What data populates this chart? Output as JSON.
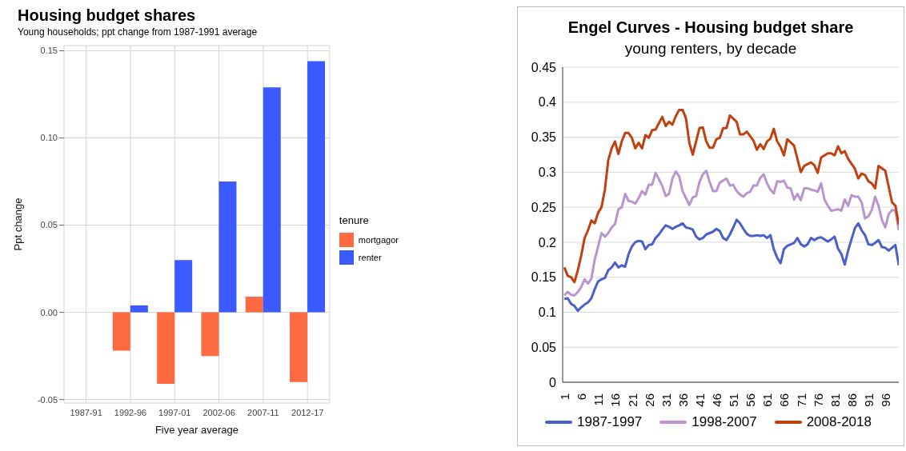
{
  "chart_data": [
    {
      "type": "bar",
      "title": "Housing budget shares",
      "subtitle": "Young households; ppt change from 1987-1991 average",
      "xlabel": "Five year average",
      "ylabel": "Ppt change",
      "legend_title": "tenure",
      "categories": [
        "1987-91",
        "1992-96",
        "1997-01",
        "2002-06",
        "2007-11",
        "2012-17"
      ],
      "series": [
        {
          "name": "mortgagor",
          "color": "#fd6a42",
          "values": [
            0,
            -0.022,
            -0.041,
            -0.025,
            0.009,
            -0.04
          ]
        },
        {
          "name": "renter",
          "color": "#3a5aff",
          "values": [
            0,
            0.004,
            0.03,
            0.075,
            0.129,
            0.144
          ]
        }
      ],
      "ylim": [
        -0.052,
        0.153
      ],
      "yticks": [
        -0.05,
        {
          "value": 0,
          "label": "0.00"
        },
        0.05,
        {
          "value": 0.1,
          "label": "0.10"
        },
        0.15
      ],
      "grid": true,
      "legend": "right"
    },
    {
      "type": "line",
      "title": "Engel Curves - Housing budget share",
      "subtitle": "young renters, by decade",
      "series": [
        {
          "name": "1987-1997",
          "color": "#4a5fc8",
          "x": [
            1,
            2,
            3,
            4,
            5,
            6,
            7,
            8,
            9,
            10,
            11,
            12,
            13,
            14,
            15,
            16,
            17,
            18,
            19,
            20,
            21,
            22,
            23,
            24,
            25,
            26,
            27,
            28,
            29,
            30,
            31,
            32,
            33,
            34,
            35,
            36,
            37,
            38,
            39,
            40,
            41,
            42,
            43,
            44,
            45,
            46,
            47,
            48,
            49,
            50,
            51,
            52,
            53,
            54,
            55,
            56,
            57,
            58,
            59,
            60,
            61,
            62,
            63,
            64,
            65,
            66,
            67,
            68,
            69,
            70,
            71,
            72,
            73,
            74,
            75,
            76,
            77,
            78,
            79,
            80,
            81,
            82,
            83,
            84,
            85,
            86,
            87,
            88,
            89,
            90,
            91,
            92,
            93,
            94,
            95,
            96,
            97,
            98,
            99,
            100
          ],
          "values": [
            0.119,
            0.12,
            0.112,
            0.109,
            0.102,
            0.107,
            0.111,
            0.114,
            0.12,
            0.133,
            0.144,
            0.147,
            0.149,
            0.16,
            0.164,
            0.171,
            0.164,
            0.167,
            0.165,
            0.183,
            0.194,
            0.2,
            0.202,
            0.201,
            0.19,
            0.196,
            0.197,
            0.206,
            0.211,
            0.218,
            0.224,
            0.222,
            0.219,
            0.222,
            0.224,
            0.227,
            0.221,
            0.22,
            0.218,
            0.208,
            0.204,
            0.206,
            0.211,
            0.213,
            0.215,
            0.219,
            0.216,
            0.206,
            0.203,
            0.211,
            0.221,
            0.232,
            0.227,
            0.219,
            0.212,
            0.209,
            0.209,
            0.21,
            0.209,
            0.21,
            0.206,
            0.21,
            0.19,
            0.178,
            0.17,
            0.19,
            0.195,
            0.197,
            0.199,
            0.206,
            0.197,
            0.194,
            0.197,
            0.206,
            0.203,
            0.206,
            0.207,
            0.204,
            0.201,
            0.204,
            0.208,
            0.191,
            0.183,
            0.168,
            0.188,
            0.204,
            0.22,
            0.227,
            0.217,
            0.21,
            0.197,
            0.196,
            0.199,
            0.203,
            0.193,
            0.192,
            0.188,
            0.192,
            0.196,
            0.167
          ]
        },
        {
          "name": "1998-2007",
          "color": "#b895cc",
          "x": [
            1,
            2,
            3,
            4,
            5,
            6,
            7,
            8,
            9,
            10,
            11,
            12,
            13,
            14,
            15,
            16,
            17,
            18,
            19,
            20,
            21,
            22,
            23,
            24,
            25,
            26,
            27,
            28,
            29,
            30,
            31,
            32,
            33,
            34,
            35,
            36,
            37,
            38,
            39,
            40,
            41,
            42,
            43,
            44,
            45,
            46,
            47,
            48,
            49,
            50,
            51,
            52,
            53,
            54,
            55,
            56,
            57,
            58,
            59,
            60,
            61,
            62,
            63,
            64,
            65,
            66,
            67,
            68,
            69,
            70,
            71,
            72,
            73,
            74,
            75,
            76,
            77,
            78,
            79,
            80,
            81,
            82,
            83,
            84,
            85,
            86,
            87,
            88,
            89,
            90,
            91,
            92,
            93,
            94,
            95,
            96,
            97,
            98,
            99,
            100
          ],
          "values": [
            0.124,
            0.129,
            0.125,
            0.124,
            0.129,
            0.136,
            0.147,
            0.141,
            0.148,
            0.175,
            0.194,
            0.213,
            0.208,
            0.213,
            0.221,
            0.226,
            0.247,
            0.25,
            0.269,
            0.259,
            0.258,
            0.255,
            0.263,
            0.273,
            0.268,
            0.282,
            0.282,
            0.299,
            0.29,
            0.28,
            0.266,
            0.269,
            0.291,
            0.301,
            0.294,
            0.273,
            0.263,
            0.253,
            0.264,
            0.266,
            0.286,
            0.297,
            0.302,
            0.286,
            0.273,
            0.273,
            0.285,
            0.288,
            0.291,
            0.281,
            0.282,
            0.273,
            0.268,
            0.265,
            0.27,
            0.272,
            0.281,
            0.281,
            0.292,
            0.297,
            0.284,
            0.275,
            0.27,
            0.287,
            0.286,
            0.288,
            0.278,
            0.277,
            0.261,
            0.269,
            0.26,
            0.277,
            0.277,
            0.275,
            0.274,
            0.272,
            0.284,
            0.261,
            0.252,
            0.245,
            0.246,
            0.247,
            0.245,
            0.261,
            0.252,
            0.267,
            0.265,
            0.265,
            0.257,
            0.234,
            0.237,
            0.246,
            0.265,
            0.252,
            0.232,
            0.221,
            0.24,
            0.246,
            0.245,
            0.217
          ]
        },
        {
          "name": "2008-2018",
          "color": "#c0410f",
          "x": [
            1,
            2,
            3,
            4,
            5,
            6,
            7,
            8,
            9,
            10,
            11,
            12,
            13,
            14,
            15,
            16,
            17,
            18,
            19,
            20,
            21,
            22,
            23,
            24,
            25,
            26,
            27,
            28,
            29,
            30,
            31,
            32,
            33,
            34,
            35,
            36,
            37,
            38,
            39,
            40,
            41,
            42,
            43,
            44,
            45,
            46,
            47,
            48,
            49,
            50,
            52,
            53,
            54,
            55,
            57,
            58,
            59,
            60,
            61,
            62,
            63,
            64,
            65,
            66,
            67,
            69,
            71,
            72,
            74,
            75,
            76,
            77,
            79,
            80,
            81,
            82,
            83,
            84,
            85,
            87,
            88,
            89,
            90,
            91,
            92,
            93,
            94,
            96,
            98,
            99,
            100
          ],
          "values": [
            0.164,
            0.152,
            0.15,
            0.143,
            0.16,
            0.181,
            0.206,
            0.217,
            0.231,
            0.227,
            0.242,
            0.25,
            0.275,
            0.317,
            0.334,
            0.344,
            0.326,
            0.344,
            0.356,
            0.356,
            0.349,
            0.334,
            0.342,
            0.334,
            0.353,
            0.349,
            0.36,
            0.361,
            0.37,
            0.379,
            0.366,
            0.372,
            0.368,
            0.38,
            0.389,
            0.389,
            0.377,
            0.342,
            0.325,
            0.344,
            0.363,
            0.364,
            0.344,
            0.335,
            0.335,
            0.347,
            0.349,
            0.363,
            0.363,
            0.381,
            0.372,
            0.354,
            0.354,
            0.358,
            0.345,
            0.332,
            0.34,
            0.333,
            0.344,
            0.348,
            0.362,
            0.344,
            0.336,
            0.324,
            0.347,
            0.338,
            0.3,
            0.309,
            0.314,
            0.31,
            0.299,
            0.321,
            0.327,
            0.327,
            0.324,
            0.337,
            0.327,
            0.33,
            0.319,
            0.305,
            0.291,
            0.298,
            0.296,
            0.287,
            0.284,
            0.277,
            0.309,
            0.302,
            0.257,
            0.252,
            0.225
          ]
        }
      ],
      "xlim": [
        0.5,
        100
      ],
      "xticks": [
        1,
        6,
        11,
        16,
        21,
        26,
        31,
        36,
        41,
        46,
        51,
        56,
        61,
        66,
        71,
        76,
        81,
        86,
        91,
        96
      ],
      "ylim": [
        0,
        0.45
      ],
      "yticks": [
        0,
        0.05,
        0.1,
        0.15,
        0.2,
        0.25,
        0.3,
        0.35,
        0.4,
        0.45
      ],
      "grid": "y",
      "legend": "bottom",
      "marker": "none",
      "line_style": "solid"
    }
  ]
}
